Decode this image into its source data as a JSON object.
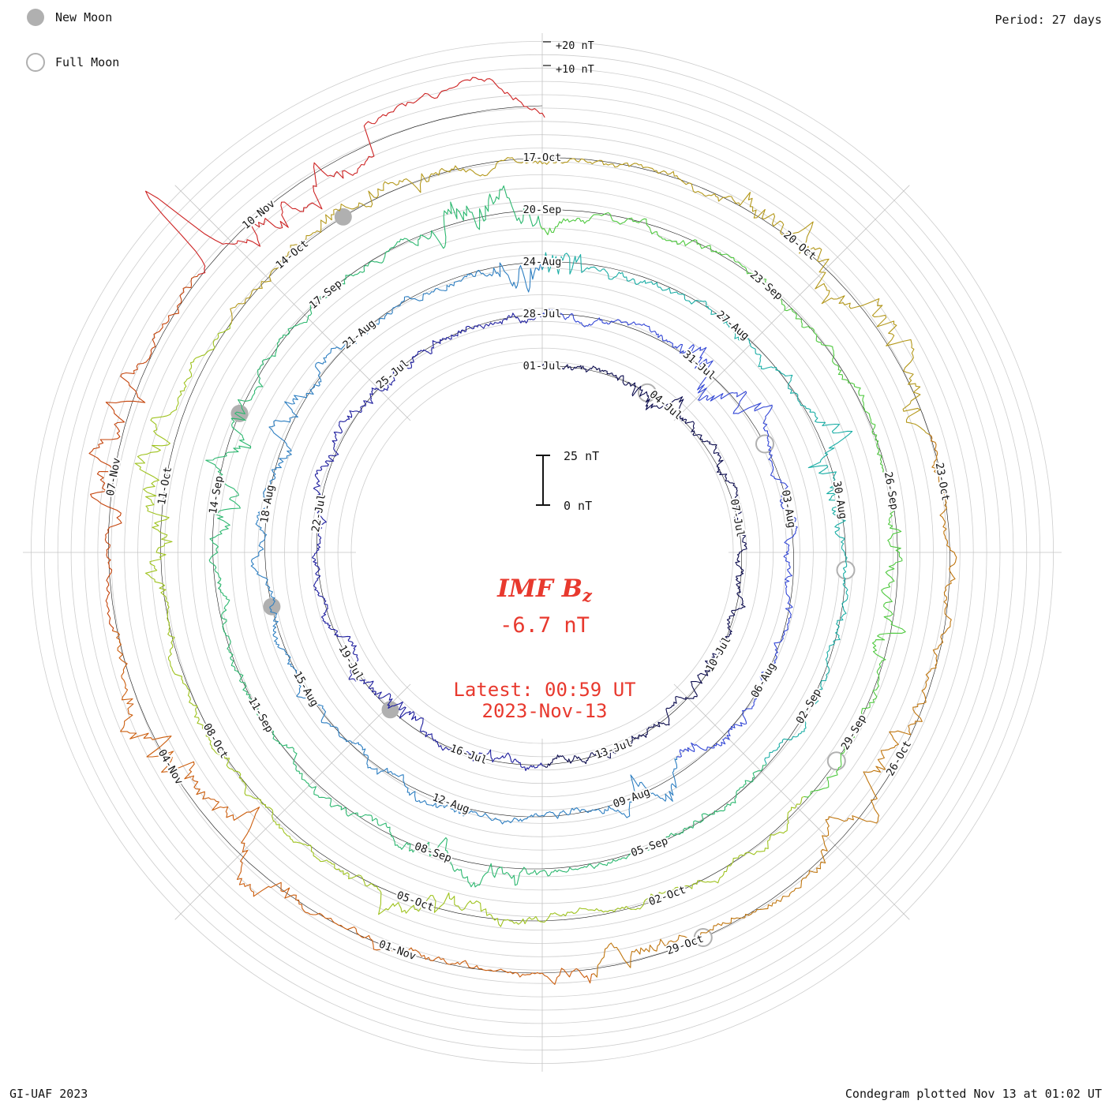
{
  "legend": {
    "new_moon": "New Moon",
    "full_moon": "Full Moon"
  },
  "header": {
    "period": "Period: 27 days"
  },
  "footer": {
    "left": "GI-UAF 2023",
    "right": "Condegram plotted Nov 13 at 01:02 UT"
  },
  "center": {
    "title_main": "IMF B",
    "title_sub": "z",
    "value": "-6.7 nT",
    "latest_time": "Latest: 00:59 UT",
    "latest_date": "2023-Nov-13"
  },
  "scale_bar": {
    "top_label": "25 nT",
    "bottom_label": "0 nT"
  },
  "radial_scale": {
    "plus20": "+20 nT",
    "plus10": "+10 nT"
  },
  "colors": {
    "accent_red": "#e8392e",
    "grid": "#cdcdcd",
    "spoke": "#c4c4c4",
    "baseline": "#1a1a1a",
    "moon_gray": "#b0b0b0",
    "label": "#141414"
  },
  "chart_data": {
    "type": "line",
    "variant": "condegram (polar spiral time series)",
    "title": "IMF Bz",
    "units": "nT",
    "current_value_nT": -6.7,
    "latest_sample": "2023-Nov-13 00:59 UT",
    "period_days": 27,
    "span": {
      "start_label": "01-Jul",
      "end_label": "2023-Nov-13"
    },
    "ring_start_labels": [
      "01-Jul",
      "28-Jul",
      "24-Aug",
      "20-Sep",
      "17-Oct"
    ],
    "scale_bar_nT": [
      0,
      25
    ],
    "radial_reference_labels": [
      "+10 nT",
      "+20 nT"
    ],
    "date_labels": [
      [
        0,
        "01-Jul"
      ],
      [
        3,
        "04-Jul"
      ],
      [
        6,
        "07-Jul"
      ],
      [
        9,
        "10-Jul"
      ],
      [
        12,
        "13-Jul"
      ],
      [
        15,
        "16-Jul"
      ],
      [
        18,
        "19-Jul"
      ],
      [
        21,
        "22-Jul"
      ],
      [
        24,
        "25-Jul"
      ],
      [
        27,
        "28-Jul"
      ],
      [
        30,
        "31-Jul"
      ],
      [
        33,
        "03-Aug"
      ],
      [
        36,
        "06-Aug"
      ],
      [
        39,
        "09-Aug"
      ],
      [
        42,
        "12-Aug"
      ],
      [
        45,
        "15-Aug"
      ],
      [
        48,
        "18-Aug"
      ],
      [
        51,
        "21-Aug"
      ],
      [
        54,
        "24-Aug"
      ],
      [
        57,
        "27-Aug"
      ],
      [
        60,
        "30-Aug"
      ],
      [
        63,
        "02-Sep"
      ],
      [
        66,
        "05-Sep"
      ],
      [
        69,
        "08-Sep"
      ],
      [
        72,
        "11-Sep"
      ],
      [
        75,
        "14-Sep"
      ],
      [
        78,
        "17-Sep"
      ],
      [
        81,
        "20-Sep"
      ],
      [
        84,
        "23-Sep"
      ],
      [
        87,
        "26-Sep"
      ],
      [
        90,
        "29-Sep"
      ],
      [
        93,
        "02-Oct"
      ],
      [
        96,
        "05-Oct"
      ],
      [
        99,
        "08-Oct"
      ],
      [
        102,
        "11-Oct"
      ],
      [
        105,
        "14-Oct"
      ],
      [
        108,
        "17-Oct"
      ],
      [
        111,
        "20-Oct"
      ],
      [
        114,
        "23-Oct"
      ],
      [
        117,
        "26-Oct"
      ],
      [
        120,
        "29-Oct"
      ],
      [
        123,
        "01-Nov"
      ],
      [
        126,
        "04-Nov"
      ],
      [
        129,
        "07-Nov"
      ],
      [
        132,
        "10-Nov"
      ]
    ],
    "color_segments": [
      [
        0,
        13.5,
        "#0b0b4d"
      ],
      [
        13.5,
        27,
        "#1e1e9e"
      ],
      [
        27,
        38,
        "#3347d6"
      ],
      [
        38,
        54,
        "#2e7fc2"
      ],
      [
        54,
        64,
        "#19ada5"
      ],
      [
        64,
        81,
        "#2db870"
      ],
      [
        81,
        91,
        "#4fc93f"
      ],
      [
        91,
        104,
        "#9fc31f"
      ],
      [
        104,
        113.5,
        "#b4981b"
      ],
      [
        113.5,
        121,
        "#c0760f"
      ],
      [
        121,
        127.5,
        "#cc5e0e"
      ],
      [
        127.5,
        131.2,
        "#c4430a"
      ],
      [
        131.2,
        135.05,
        "#cd2323"
      ]
    ],
    "moon_markers": {
      "new_moons": [
        [
          16.8,
          "17-Jul"
        ],
        [
          46.4,
          "16-Aug"
        ],
        [
          76.1,
          "15-Sep"
        ],
        [
          105.7,
          "14-Oct"
        ]
      ],
      "full_moons": [
        [
          2.5,
          "03-Jul"
        ],
        [
          31.8,
          "01-Aug"
        ],
        [
          61.0,
          "31-Aug"
        ],
        [
          90.4,
          "29-Sep"
        ],
        [
          119.8,
          "28-Oct"
        ]
      ]
    },
    "notable_features": [
      {
        "where": "just before data end (top of outermost red ring)",
        "desc": "sustained positive excursion between the +10 nT and +20 nT reference levels"
      },
      {
        "where": "outermost ring, left side (~07-Nov)",
        "desc": "large brief outward (positive) spike"
      }
    ]
  }
}
